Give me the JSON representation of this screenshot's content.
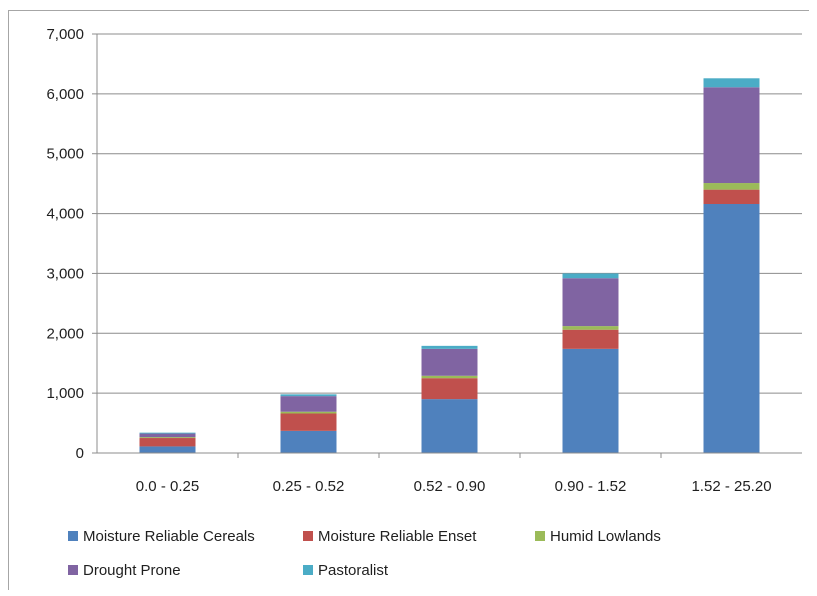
{
  "chart_data": {
    "type": "bar",
    "stacked": true,
    "categories": [
      "0.0 -  0.25",
      "0.25 - 0.52",
      "0.52 - 0.90",
      "0.90 - 1.52",
      "1.52 - 25.20"
    ],
    "series": [
      {
        "name": "Moisture Reliable Cereals",
        "color": "#4f81bd",
        "values": [
          110,
          370,
          900,
          1740,
          4160
        ]
      },
      {
        "name": "Moisture Reliable Enset",
        "color": "#c0504d",
        "values": [
          140,
          290,
          350,
          320,
          240
        ]
      },
      {
        "name": "Humid Lowlands",
        "color": "#9bbb59",
        "values": [
          15,
          30,
          40,
          60,
          110
        ]
      },
      {
        "name": "Drought Prone",
        "color": "#8064a2",
        "values": [
          60,
          260,
          450,
          800,
          1600
        ]
      },
      {
        "name": "Pastoralist",
        "color": "#4bacc6",
        "values": [
          15,
          30,
          50,
          80,
          150
        ]
      }
    ],
    "ylim": [
      0,
      7000
    ],
    "yticks": [
      0,
      1000,
      2000,
      3000,
      4000,
      5000,
      6000,
      7000
    ],
    "ytick_labels": [
      "0",
      "1,000",
      "2,000",
      "3,000",
      "4,000",
      "5,000",
      "6,000",
      "7,000"
    ],
    "grid": true,
    "legend_position": "bottom"
  }
}
